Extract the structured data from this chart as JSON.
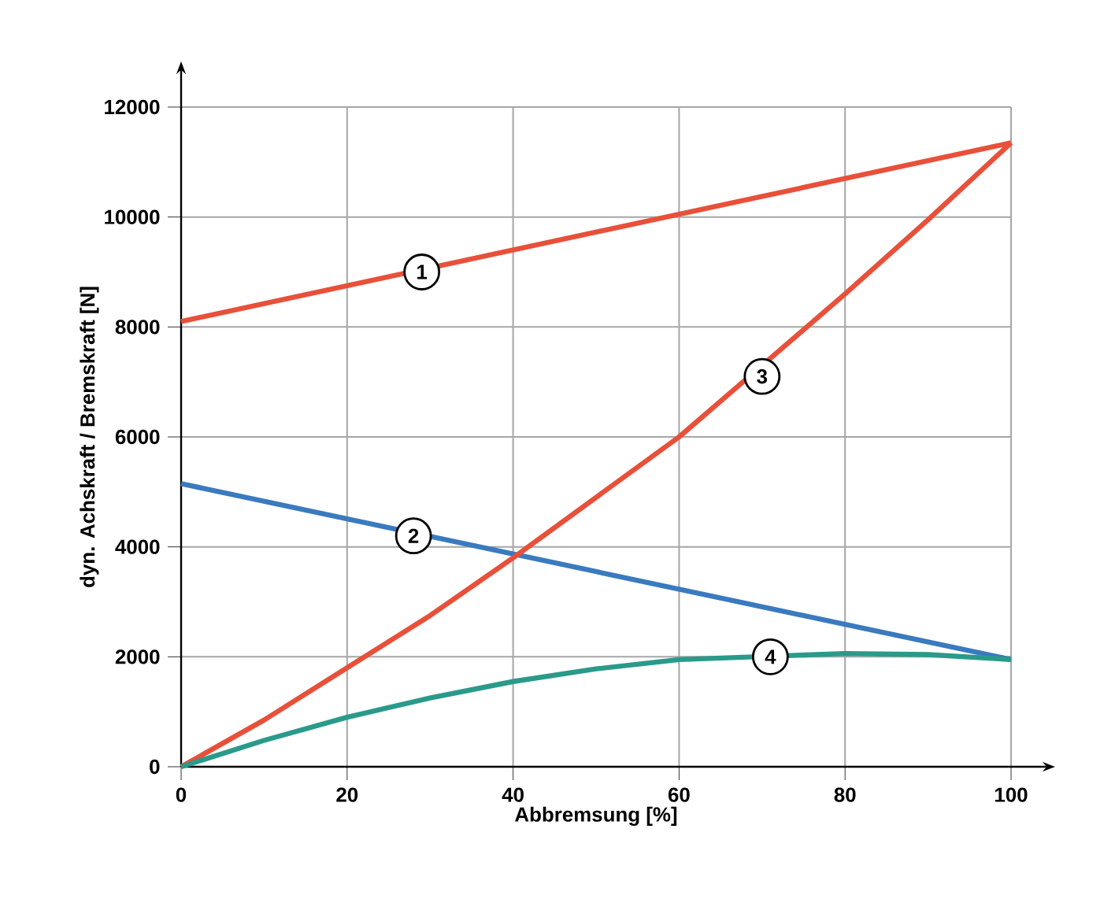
{
  "chart_data": {
    "type": "line",
    "xlabel": "Abbremsung [%]",
    "ylabel": "dyn. Achskraft / Bremskraft [N]",
    "xlim": [
      0,
      100
    ],
    "ylim": [
      0,
      12000
    ],
    "xticks": [
      0,
      20,
      40,
      60,
      80,
      100
    ],
    "yticks": [
      0,
      2000,
      4000,
      6000,
      8000,
      10000,
      12000
    ],
    "grid": true,
    "marker": "none",
    "line_style": "solid",
    "series": [
      {
        "color": "#e8503a",
        "x": [
          0,
          100
        ],
        "values": [
          8100,
          11350
        ]
      },
      {
        "color": "#3a7abf",
        "x": [
          0,
          100
        ],
        "values": [
          5150,
          1950
        ]
      },
      {
        "color": "#e8503a",
        "x": [
          0,
          10,
          20,
          30,
          40,
          50,
          60,
          80,
          90,
          100
        ],
        "values": [
          0,
          850,
          1800,
          2750,
          3800,
          4900,
          6000,
          8600,
          9950,
          11350
        ]
      },
      {
        "color": "#2a9a8a",
        "x": [
          0,
          10,
          20,
          30,
          40,
          50,
          60,
          80,
          90,
          100
        ],
        "values": [
          0,
          480,
          900,
          1250,
          1550,
          1780,
          1950,
          2060,
          2040,
          1950
        ]
      }
    ],
    "annotations": [
      {
        "text": "1",
        "x": 29,
        "y": 9000
      },
      {
        "text": "2",
        "x": 28,
        "y": 4200
      },
      {
        "text": "3",
        "x": 70,
        "y": 7100
      },
      {
        "text": "4",
        "x": 71,
        "y": 2000
      }
    ]
  }
}
